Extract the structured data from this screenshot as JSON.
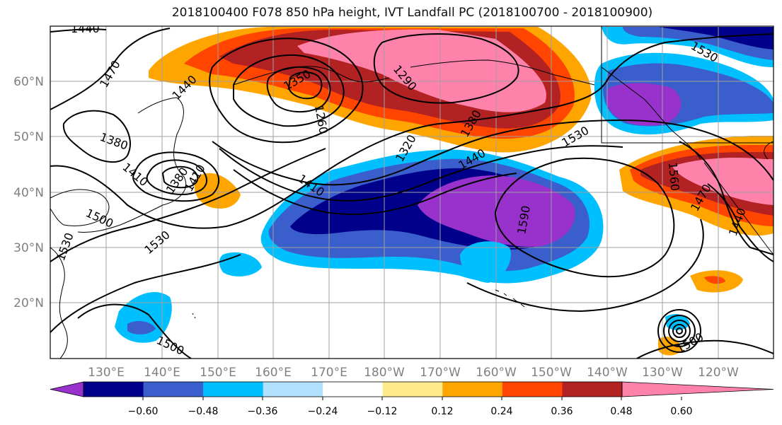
{
  "title": "2018100400 F078 850 hPa height, IVT Landfall PC (2018100700 - 2018100900)",
  "lat_labels": [
    "60°N",
    "50°N",
    "40°N",
    "30°N",
    "20°N"
  ],
  "lon_labels": [
    "130°E",
    "140°E",
    "150°E",
    "160°E",
    "170°E",
    "180°W",
    "170°W",
    "160°W",
    "150°W",
    "140°W",
    "130°W",
    "120°W"
  ],
  "contour_labels": [
    {
      "text": "1440",
      "rot": 0
    },
    {
      "text": "1470",
      "rot": -60
    },
    {
      "text": "1440",
      "rot": -45
    },
    {
      "text": "1350",
      "rot": -30
    },
    {
      "text": "1290",
      "rot": 50
    },
    {
      "text": "1260",
      "rot": 80
    },
    {
      "text": "1380",
      "rot": -20
    },
    {
      "text": "1410",
      "rot": 40
    },
    {
      "text": "1380",
      "rot": -55
    },
    {
      "text": "1410",
      "rot": 35
    },
    {
      "text": "1320",
      "rot": -60
    },
    {
      "text": "1380",
      "rot": -60
    },
    {
      "text": "1530",
      "rot": -30
    },
    {
      "text": "1440",
      "rot": -30
    },
    {
      "text": "1410",
      "rot": 30
    },
    {
      "text": "1500",
      "rot": 25
    },
    {
      "text": "1530",
      "rot": -40
    },
    {
      "text": "1530",
      "rot": -70
    },
    {
      "text": "1590",
      "rot": -80
    },
    {
      "text": "1560",
      "rot": 85
    },
    {
      "text": "1470",
      "rot": -60
    },
    {
      "text": "1440",
      "rot": -70
    },
    {
      "text": "1530",
      "rot": 30
    },
    {
      "text": "1500",
      "rot": 30
    },
    {
      "text": "1500",
      "rot": 30
    }
  ],
  "colorbar": {
    "ticks": [
      "−0.60",
      "−0.48",
      "−0.36",
      "−0.24",
      "−0.12",
      "0.12",
      "0.24",
      "0.36",
      "0.48",
      "0.60"
    ],
    "colors": [
      "#9932cc",
      "#00008b",
      "#3a5fcd",
      "#00bfff",
      "#b0e2ff",
      "#ffffff",
      "#ffeb8a",
      "#ffa500",
      "#ff4500",
      "#b22222",
      "#ff82ab"
    ]
  }
}
